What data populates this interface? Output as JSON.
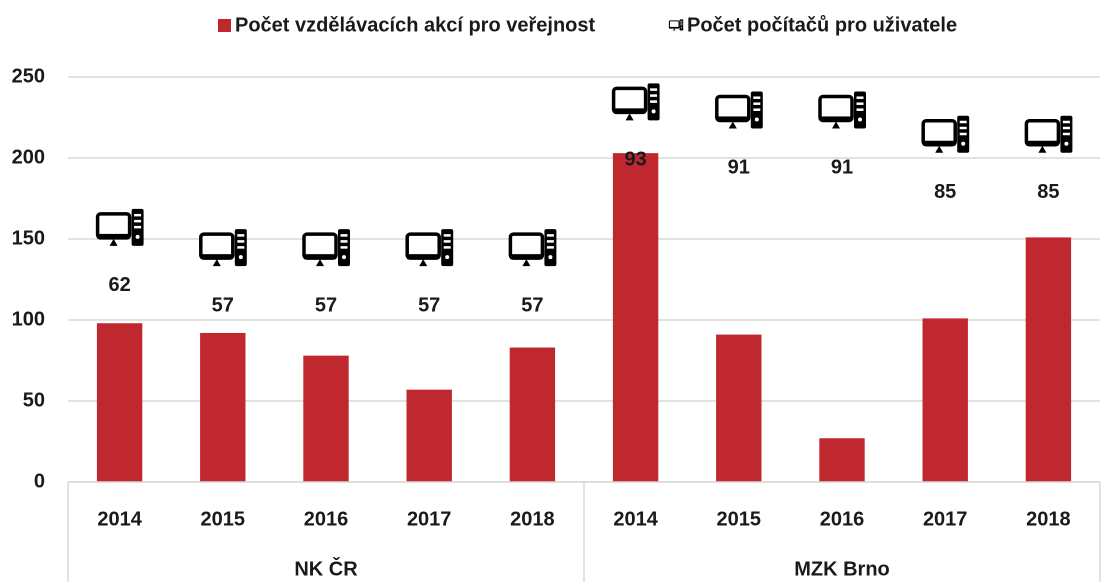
{
  "chart_data": {
    "type": "bar",
    "categories": [
      "2014",
      "2015",
      "2016",
      "2017",
      "2018",
      "2014",
      "2015",
      "2016",
      "2017",
      "2018"
    ],
    "groups": [
      "NK ČR",
      "MZK Brno"
    ],
    "series": [
      {
        "name": "Počet vzdělávacích akcí pro veřejnost",
        "color": "#c0282f",
        "values": [
          98,
          92,
          78,
          57,
          83,
          203,
          91,
          27,
          101,
          151
        ]
      },
      {
        "name": "Počet počítačů pro uživatele",
        "color": "#000000",
        "axis": "y2",
        "values": [
          62,
          57,
          57,
          57,
          57,
          93,
          91,
          91,
          85,
          85
        ]
      }
    ],
    "ylim": [
      0,
      250
    ],
    "yticks": [
      0,
      50,
      100,
      150,
      200,
      250
    ],
    "y2lim": [
      0,
      100
    ],
    "grid": true,
    "legend": "top"
  }
}
